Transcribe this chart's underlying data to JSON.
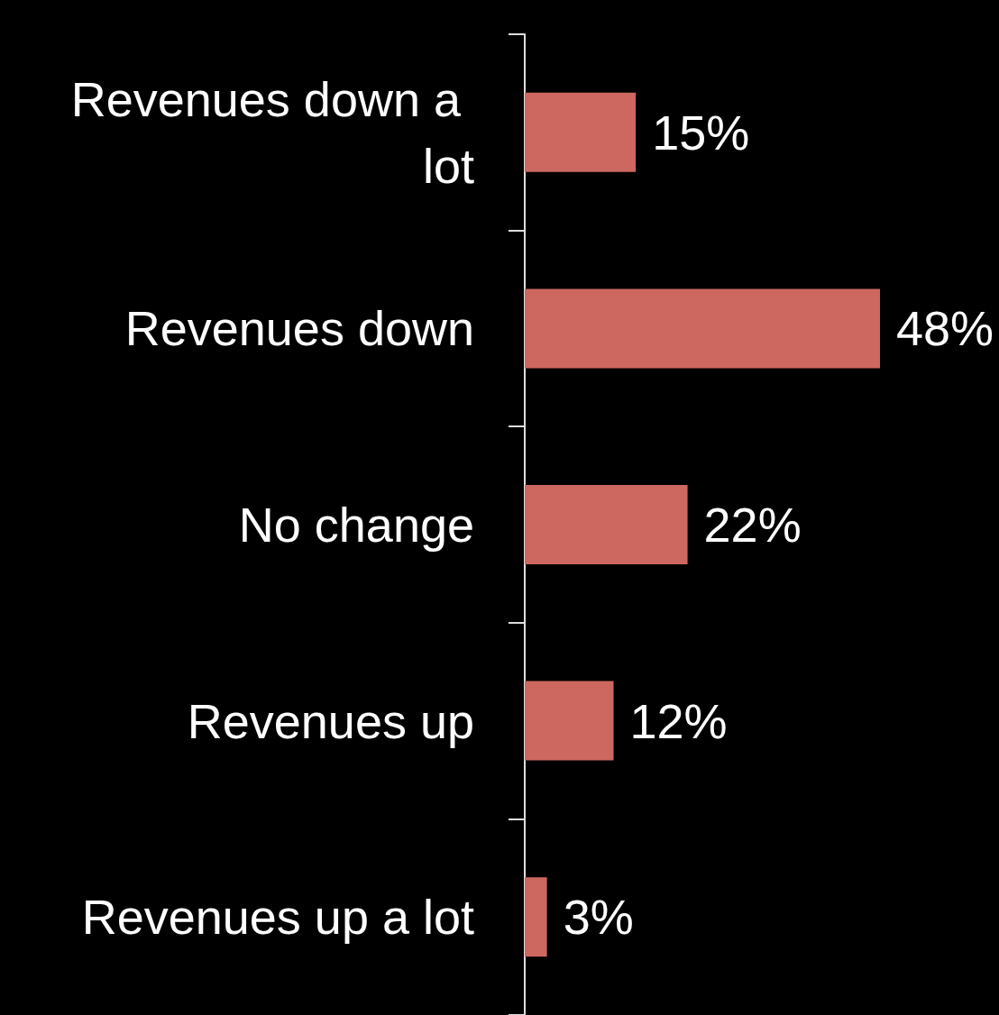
{
  "chart_data": {
    "type": "bar",
    "orientation": "horizontal",
    "categories": [
      "Revenues down a lot",
      "Revenues down",
      "No change",
      "Revenues up",
      "Revenues up a lot"
    ],
    "values": [
      15,
      48,
      22,
      12,
      3
    ],
    "value_labels": [
      "15%",
      "48%",
      "22%",
      "12%",
      "3%"
    ],
    "color": "#cd6860",
    "grid": false
  }
}
